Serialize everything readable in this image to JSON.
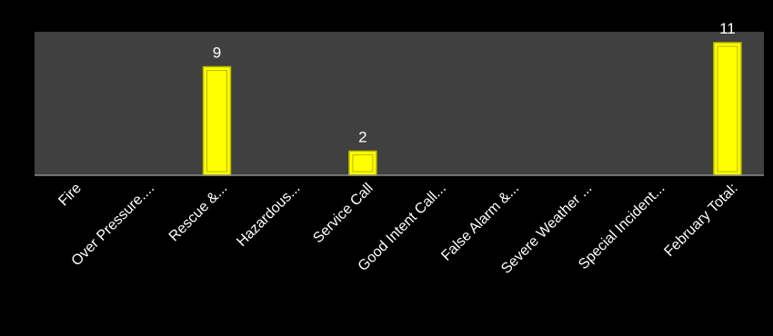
{
  "chart_data": {
    "type": "bar",
    "categories": [
      "Fire",
      "Over Pressure....",
      "Rescue &...",
      "Hazardous...",
      "Service Call",
      "Good Intent Call...",
      "False Alarm &...",
      "Severe Weather ...",
      "Special Incident...",
      "February Total:"
    ],
    "values": [
      0,
      0,
      9,
      0,
      2,
      0,
      0,
      0,
      0,
      11
    ],
    "data_labels": [
      "",
      "",
      "9",
      "",
      "2",
      "",
      "",
      "",
      "",
      "11"
    ],
    "ylim": [
      0,
      11
    ],
    "grid": false,
    "legend": "none",
    "colors": {
      "background": "#000000",
      "plot_area": "#404040",
      "bar_fill": "#ffff00",
      "bar_stroke": "#b8b800",
      "text": "#ffffff",
      "axis_line": "#8c8c8c"
    }
  }
}
